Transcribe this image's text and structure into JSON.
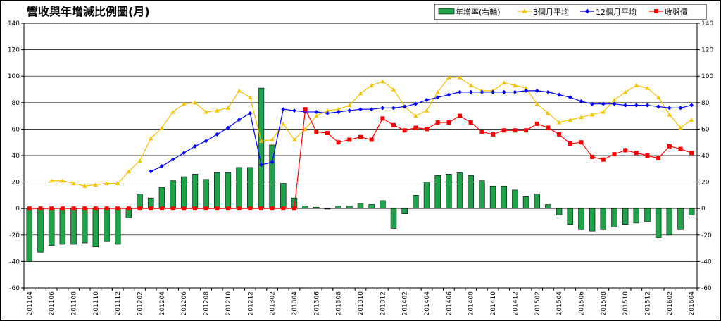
{
  "chart_data": {
    "type": "bar",
    "title": "營收與年增減比例圖(月)",
    "legend_position": "top-right",
    "ylim_left": [
      -60,
      140
    ],
    "ylim_right": [
      -60,
      140
    ],
    "y_ticks": [
      -60,
      -40,
      -20,
      0,
      20,
      40,
      60,
      80,
      100,
      120,
      140
    ],
    "grid": true,
    "colors": {
      "bar": "#1ea24a",
      "ma3": "#f5c200",
      "ma12": "#0000ff",
      "price": "#ff0000"
    },
    "categories": [
      "201104",
      "201105",
      "201106",
      "201107",
      "201108",
      "201109",
      "201110",
      "201111",
      "201112",
      "201201",
      "201202",
      "201203",
      "201204",
      "201205",
      "201206",
      "201207",
      "201208",
      "201209",
      "201210",
      "201211",
      "201212",
      "201301",
      "201302",
      "201303",
      "201304",
      "201305",
      "201306",
      "201307",
      "201308",
      "201309",
      "201310",
      "201311",
      "201312",
      "201401",
      "201402",
      "201403",
      "201404",
      "201405",
      "201406",
      "201407",
      "201408",
      "201409",
      "201410",
      "201411",
      "201412",
      "201501",
      "201502",
      "201503",
      "201504",
      "201505",
      "201506",
      "201507",
      "201508",
      "201509",
      "201510",
      "201511",
      "201512",
      "201601",
      "201602",
      "201603",
      "201604"
    ],
    "x_tick_labels": [
      "201104",
      "201106",
      "201108",
      "201110",
      "201112",
      "201202",
      "201204",
      "201206",
      "201208",
      "201210",
      "201212",
      "201302",
      "201304",
      "201306",
      "201308",
      "201310",
      "201312",
      "201402",
      "201404",
      "201406",
      "201408",
      "201410",
      "201412",
      "201502",
      "201504",
      "201506",
      "201508",
      "201510",
      "201512",
      "201602",
      "201604"
    ],
    "series": [
      {
        "name": "年增率(右軸)",
        "type": "bar",
        "values": [
          -40,
          -33,
          -28,
          -27,
          -27,
          -26,
          -29,
          -25,
          -27,
          -7,
          11,
          8,
          16,
          21,
          24,
          26,
          22,
          27,
          27,
          31,
          31,
          91,
          48,
          19,
          8,
          2,
          1,
          0,
          2,
          2,
          4,
          3,
          6,
          -15,
          -4,
          10,
          20,
          25,
          26,
          27,
          25,
          21,
          17,
          17,
          14,
          9,
          11,
          3,
          -5,
          -12,
          -16,
          -17,
          -16,
          -14,
          -12,
          -11,
          -10,
          -22,
          -20,
          -16,
          -5
        ]
      },
      {
        "name": "3個月平均",
        "type": "line",
        "values": [
          null,
          null,
          21,
          21,
          19,
          17,
          18,
          19,
          19,
          28,
          36,
          53,
          61,
          73,
          79,
          80,
          73,
          74,
          76,
          89,
          84,
          51,
          52,
          64,
          52,
          60,
          70,
          74,
          75,
          78,
          87,
          93,
          96,
          90,
          77,
          70,
          74,
          88,
          99,
          99,
          93,
          89,
          89,
          95,
          93,
          91,
          79,
          72,
          65,
          67,
          69,
          71,
          73,
          82,
          88,
          93,
          91,
          84,
          71,
          61,
          67
        ]
      },
      {
        "name": "12個月平均",
        "type": "line",
        "values": [
          null,
          null,
          null,
          null,
          null,
          null,
          null,
          null,
          null,
          null,
          null,
          28,
          32,
          37,
          42,
          47,
          51,
          56,
          61,
          67,
          72,
          33,
          35,
          75,
          74,
          73,
          73,
          72,
          73,
          74,
          75,
          75,
          76,
          76,
          77,
          79,
          82,
          84,
          86,
          88,
          88,
          88,
          88,
          88,
          88,
          89,
          89,
          88,
          86,
          84,
          81,
          79,
          79,
          79,
          78,
          78,
          78,
          77,
          76,
          76,
          78
        ]
      },
      {
        "name": "收盤價",
        "type": "line",
        "values": [
          0,
          0,
          0,
          0,
          0,
          0,
          0,
          0,
          0,
          0,
          0,
          0,
          0,
          0,
          0,
          0,
          0,
          0,
          0,
          0,
          0,
          0,
          0,
          0,
          0,
          75,
          58,
          57,
          50,
          52,
          54,
          52,
          68,
          63,
          59,
          61,
          60,
          65,
          65,
          70,
          65,
          58,
          56,
          59,
          59,
          59,
          64,
          61,
          56,
          49,
          50,
          39,
          37,
          41,
          44,
          42,
          40,
          38,
          47,
          45,
          42
        ]
      }
    ]
  }
}
